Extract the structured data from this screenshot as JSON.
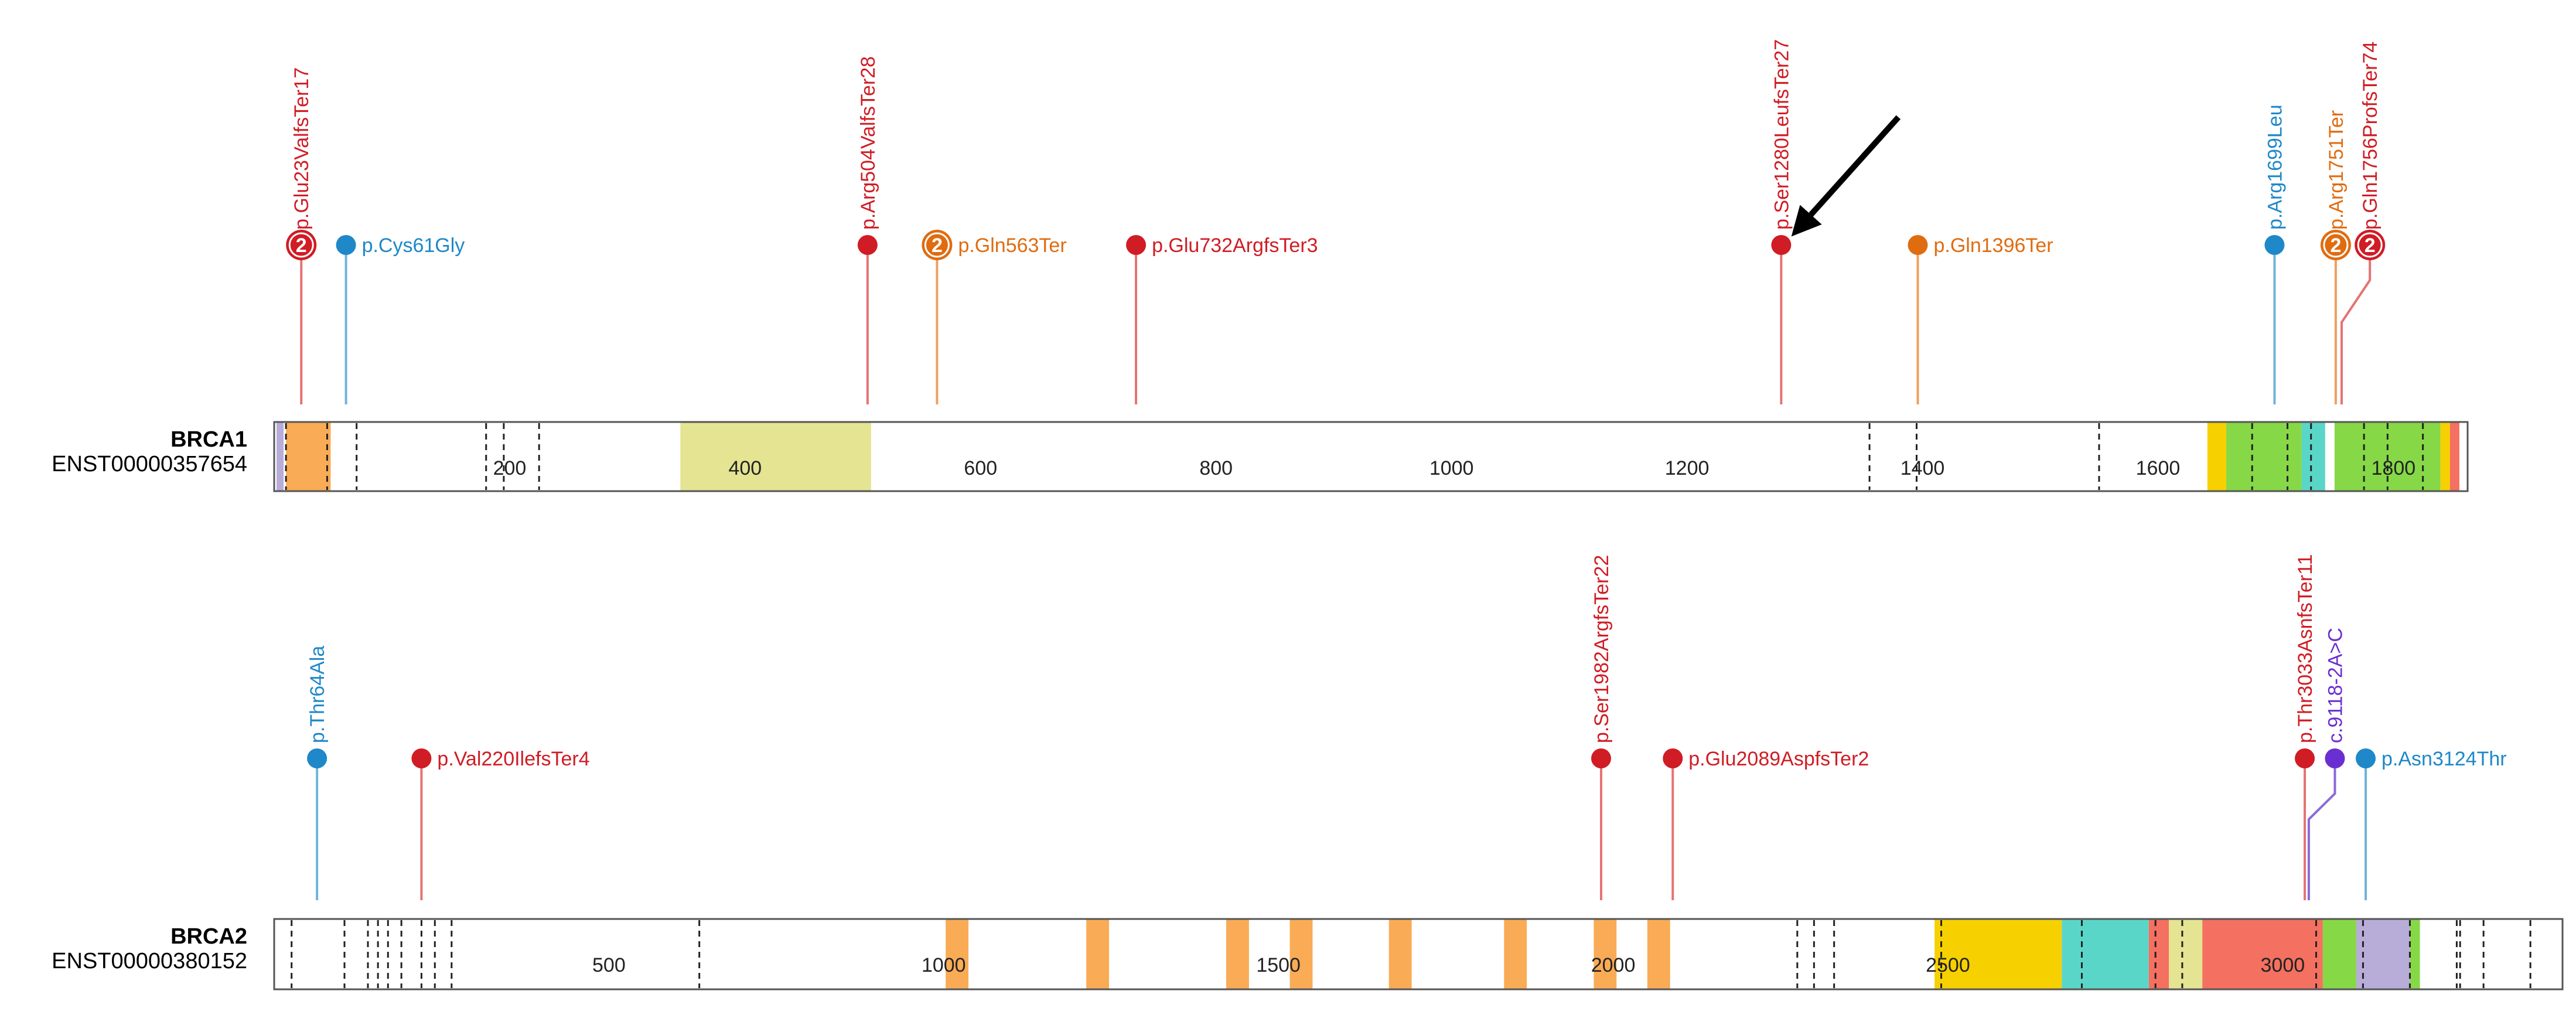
{
  "colors": {
    "red": "#d01c24",
    "blue": "#1e88c8",
    "orange": "#e06c10",
    "purple": "#6a2fd0",
    "stem_red": "#e57373",
    "stem_blue": "#6fb3d8",
    "stem_orange": "#eea060",
    "stem_purple": "#8a6ad8"
  },
  "genes": [
    {
      "id": "brca1",
      "symbol": "BRCA1",
      "transcript": "ENST00000357654",
      "length": 1863,
      "ticks": [
        {
          "value": 200,
          "label": "200"
        },
        {
          "value": 400,
          "label": "400"
        },
        {
          "value": 600,
          "label": "600"
        },
        {
          "value": 800,
          "label": "800"
        },
        {
          "value": 1000,
          "label": "1000"
        },
        {
          "value": 1200,
          "label": "1200"
        },
        {
          "value": 1400,
          "label": "1400"
        },
        {
          "value": 1600,
          "label": "1600"
        },
        {
          "value": 1800,
          "label": "1800"
        }
      ],
      "exon_boundaries": [
        10,
        45,
        70,
        180,
        195,
        225,
        1355,
        1395,
        1550,
        1680,
        1710,
        1730,
        1775,
        1795,
        1825
      ],
      "domains": [
        {
          "start": 2,
          "end": 8,
          "color": "#b8acd8"
        },
        {
          "start": 10,
          "end": 48,
          "color": "#f9ab55"
        },
        {
          "start": 345,
          "end": 507,
          "color": "#e4e493"
        },
        {
          "start": 1642,
          "end": 1658,
          "color": "#f7d000"
        },
        {
          "start": 1658,
          "end": 1722,
          "color": "#86d846"
        },
        {
          "start": 1722,
          "end": 1742,
          "color": "#5ad6c8"
        },
        {
          "start": 1750,
          "end": 1840,
          "color": "#86d846"
        },
        {
          "start": 1840,
          "end": 1848,
          "color": "#f7d000"
        },
        {
          "start": 1848,
          "end": 1856,
          "color": "#f47060"
        }
      ],
      "mutations": [
        {
          "label": "p.Glu23ValfsTer17",
          "pos": 23,
          "color": "red",
          "count": "2",
          "orient": "vertical"
        },
        {
          "label": "p.Cys61Gly",
          "pos": 61,
          "color": "blue",
          "orient": "horizontal"
        },
        {
          "label": "p.Arg504ValfsTer28",
          "pos": 504,
          "color": "red",
          "orient": "vertical"
        },
        {
          "label": "p.Gln563Ter",
          "pos": 563,
          "color": "orange",
          "count": "2",
          "orient": "horizontal"
        },
        {
          "label": "p.Glu732ArgfsTer3",
          "pos": 732,
          "color": "red",
          "orient": "horizontal"
        },
        {
          "label": "p.Ser1280LeufsTer27",
          "pos": 1280,
          "color": "red",
          "orient": "vertical"
        },
        {
          "label": "p.Gln1396Ter",
          "pos": 1396,
          "color": "orange",
          "orient": "horizontal"
        },
        {
          "label": "p.Arg1699Leu",
          "pos": 1699,
          "color": "blue",
          "orient": "vertical"
        },
        {
          "label": "p.Arg1751Ter",
          "pos": 1751,
          "color": "orange",
          "count": "2",
          "orient": "vertical"
        },
        {
          "label": "p.Gln1756ProfsTer74",
          "pos": 1756,
          "color": "red",
          "count": "2",
          "orient": "vertical",
          "offset": 1780
        }
      ]
    },
    {
      "id": "brca2",
      "symbol": "BRCA2",
      "transcript": "ENST00000380152",
      "length": 3418,
      "ticks": [
        {
          "value": 500,
          "label": "500"
        },
        {
          "value": 1000,
          "label": "1000"
        },
        {
          "value": 1500,
          "label": "1500"
        },
        {
          "value": 2000,
          "label": "2000"
        },
        {
          "value": 2500,
          "label": "2500"
        },
        {
          "value": 3000,
          "label": "3000"
        }
      ],
      "exon_boundaries": [
        26,
        105,
        140,
        155,
        170,
        190,
        220,
        240,
        265,
        635,
        2275,
        2300,
        2330,
        2490,
        2700,
        2810,
        2850,
        3050,
        3120,
        3190,
        3260,
        3265,
        3300,
        3370
      ],
      "domains": [
        {
          "start": 1003,
          "end": 1037,
          "color": "#f9ab55"
        },
        {
          "start": 1213,
          "end": 1247,
          "color": "#f9ab55"
        },
        {
          "start": 1422,
          "end": 1456,
          "color": "#f9ab55"
        },
        {
          "start": 1517,
          "end": 1551,
          "color": "#f9ab55"
        },
        {
          "start": 1665,
          "end": 1699,
          "color": "#f9ab55"
        },
        {
          "start": 1837,
          "end": 1871,
          "color": "#f9ab55"
        },
        {
          "start": 1971,
          "end": 2005,
          "color": "#f9ab55"
        },
        {
          "start": 2051,
          "end": 2085,
          "color": "#f9ab55"
        },
        {
          "start": 2480,
          "end": 2670,
          "color": "#f7d000"
        },
        {
          "start": 2670,
          "end": 2800,
          "color": "#5ad6c8"
        },
        {
          "start": 2800,
          "end": 2830,
          "color": "#f47060"
        },
        {
          "start": 2830,
          "end": 2880,
          "color": "#e4e493"
        },
        {
          "start": 2880,
          "end": 3060,
          "color": "#f47060"
        },
        {
          "start": 3060,
          "end": 3110,
          "color": "#86d846"
        },
        {
          "start": 3110,
          "end": 3190,
          "color": "#b8acd8"
        },
        {
          "start": 3190,
          "end": 3205,
          "color": "#86d846"
        }
      ],
      "mutations": [
        {
          "label": "p.Thr64Ala",
          "pos": 64,
          "color": "blue",
          "orient": "vertical"
        },
        {
          "label": "p.Val220IlefsTer4",
          "pos": 220,
          "color": "red",
          "orient": "horizontal"
        },
        {
          "label": "p.Ser1982ArgfsTer22",
          "pos": 1982,
          "color": "red",
          "orient": "vertical"
        },
        {
          "label": "p.Glu2089AspfsTer2",
          "pos": 2089,
          "color": "red",
          "orient": "horizontal"
        },
        {
          "label": "p.Thr3033AsnfsTer11",
          "pos": 3033,
          "color": "red",
          "orient": "vertical"
        },
        {
          "label": "c.9118-2A>C",
          "pos": 3039,
          "color": "purple",
          "orient": "vertical",
          "offset": 3078
        },
        {
          "label": "p.Asn3124Thr",
          "pos": 3124,
          "color": "blue",
          "orient": "horizontal"
        }
      ]
    }
  ],
  "annotation": {
    "target_gene": "brca1",
    "target_mutation": "p.Ser1280LeufsTer27",
    "icon": "arrow-icon"
  }
}
